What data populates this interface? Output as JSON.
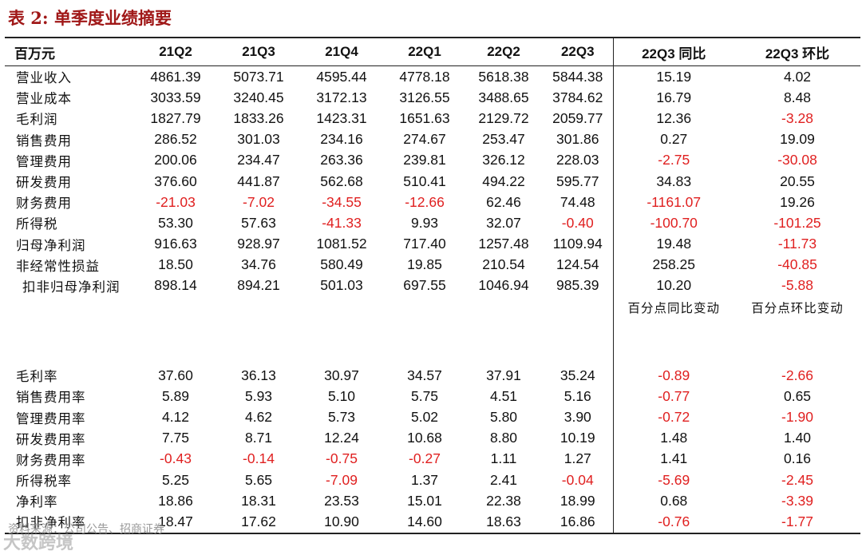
{
  "title": "表 2:  单季度业绩摘要",
  "columns": [
    "百万元",
    "21Q2",
    "21Q3",
    "21Q4",
    "22Q1",
    "22Q2",
    "22Q3",
    "22Q3 同比",
    "22Q3 环比"
  ],
  "rows": [
    {
      "label": "营业收入",
      "values": [
        "4861.39",
        "5073.71",
        "4595.44",
        "4778.18",
        "5618.38",
        "5844.38",
        "15.19",
        "4.02"
      ]
    },
    {
      "label": "营业成本",
      "values": [
        "3033.59",
        "3240.45",
        "3172.13",
        "3126.55",
        "3488.65",
        "3784.62",
        "16.79",
        "8.48"
      ]
    },
    {
      "label": "毛利润",
      "values": [
        "1827.79",
        "1833.26",
        "1423.31",
        "1651.63",
        "2129.72",
        "2059.77",
        "12.36",
        "-3.28"
      ]
    },
    {
      "label": "销售费用",
      "values": [
        "286.52",
        "301.03",
        "234.16",
        "274.67",
        "253.47",
        "301.86",
        "0.27",
        "19.09"
      ]
    },
    {
      "label": "管理费用",
      "values": [
        "200.06",
        "234.47",
        "263.36",
        "239.81",
        "326.12",
        "228.03",
        "-2.75",
        "-30.08"
      ]
    },
    {
      "label": "研发费用",
      "values": [
        "376.60",
        "441.87",
        "562.68",
        "510.41",
        "494.22",
        "595.77",
        "34.83",
        "20.55"
      ]
    },
    {
      "label": "财务费用",
      "values": [
        "-21.03",
        "-7.02",
        "-34.55",
        "-12.66",
        "62.46",
        "74.48",
        "-1161.07",
        "19.26"
      ]
    },
    {
      "label": "所得税",
      "values": [
        "53.30",
        "57.63",
        "-41.33",
        "9.93",
        "32.07",
        "-0.40",
        "-100.70",
        "-101.25"
      ]
    },
    {
      "label": "归母净利润",
      "values": [
        "916.63",
        "928.97",
        "1081.52",
        "717.40",
        "1257.48",
        "1109.94",
        "19.48",
        "-11.73"
      ]
    },
    {
      "label": "非经常性损益",
      "values": [
        "18.50",
        "34.76",
        "580.49",
        "19.85",
        "210.54",
        "124.54",
        "258.25",
        "-40.85"
      ]
    },
    {
      "label": "扣非归母净利润",
      "values": [
        "898.14",
        "894.21",
        "501.03",
        "697.55",
        "1046.94",
        "985.39",
        "10.20",
        "-5.88"
      ]
    }
  ],
  "subheader": {
    "yoy": "百分点同比变动",
    "qoq": "百分点环比变动"
  },
  "ratio_rows": [
    {
      "label": "毛利率",
      "values": [
        "37.60",
        "36.13",
        "30.97",
        "34.57",
        "37.91",
        "35.24",
        "-0.89",
        "-2.66"
      ]
    },
    {
      "label": "销售费用率",
      "values": [
        "5.89",
        "5.93",
        "5.10",
        "5.75",
        "4.51",
        "5.16",
        "-0.77",
        "0.65"
      ]
    },
    {
      "label": "管理费用率",
      "values": [
        "4.12",
        "4.62",
        "5.73",
        "5.02",
        "5.80",
        "3.90",
        "-0.72",
        "-1.90"
      ]
    },
    {
      "label": "研发费用率",
      "values": [
        "7.75",
        "8.71",
        "12.24",
        "10.68",
        "8.80",
        "10.19",
        "1.48",
        "1.40"
      ]
    },
    {
      "label": "财务费用率",
      "values": [
        "-0.43",
        "-0.14",
        "-0.75",
        "-0.27",
        "1.11",
        "1.27",
        "1.41",
        "0.16"
      ]
    },
    {
      "label": "所得税率",
      "values": [
        "5.25",
        "5.65",
        "-7.09",
        "1.37",
        "2.41",
        "-0.04",
        "-5.69",
        "-2.45"
      ]
    },
    {
      "label": "净利率",
      "values": [
        "18.86",
        "18.31",
        "23.53",
        "15.01",
        "22.38",
        "18.99",
        "0.68",
        "-3.39"
      ]
    },
    {
      "label": "扣非净利率",
      "values": [
        "18.47",
        "17.62",
        "10.90",
        "14.60",
        "18.63",
        "16.86",
        "-0.76",
        "-1.77"
      ]
    }
  ],
  "source": "资料来源：公司公告、招商证券",
  "watermark": "大数跨境",
  "colors": {
    "title": "#a01818",
    "negative": "#e02020",
    "rule": "#222222"
  }
}
